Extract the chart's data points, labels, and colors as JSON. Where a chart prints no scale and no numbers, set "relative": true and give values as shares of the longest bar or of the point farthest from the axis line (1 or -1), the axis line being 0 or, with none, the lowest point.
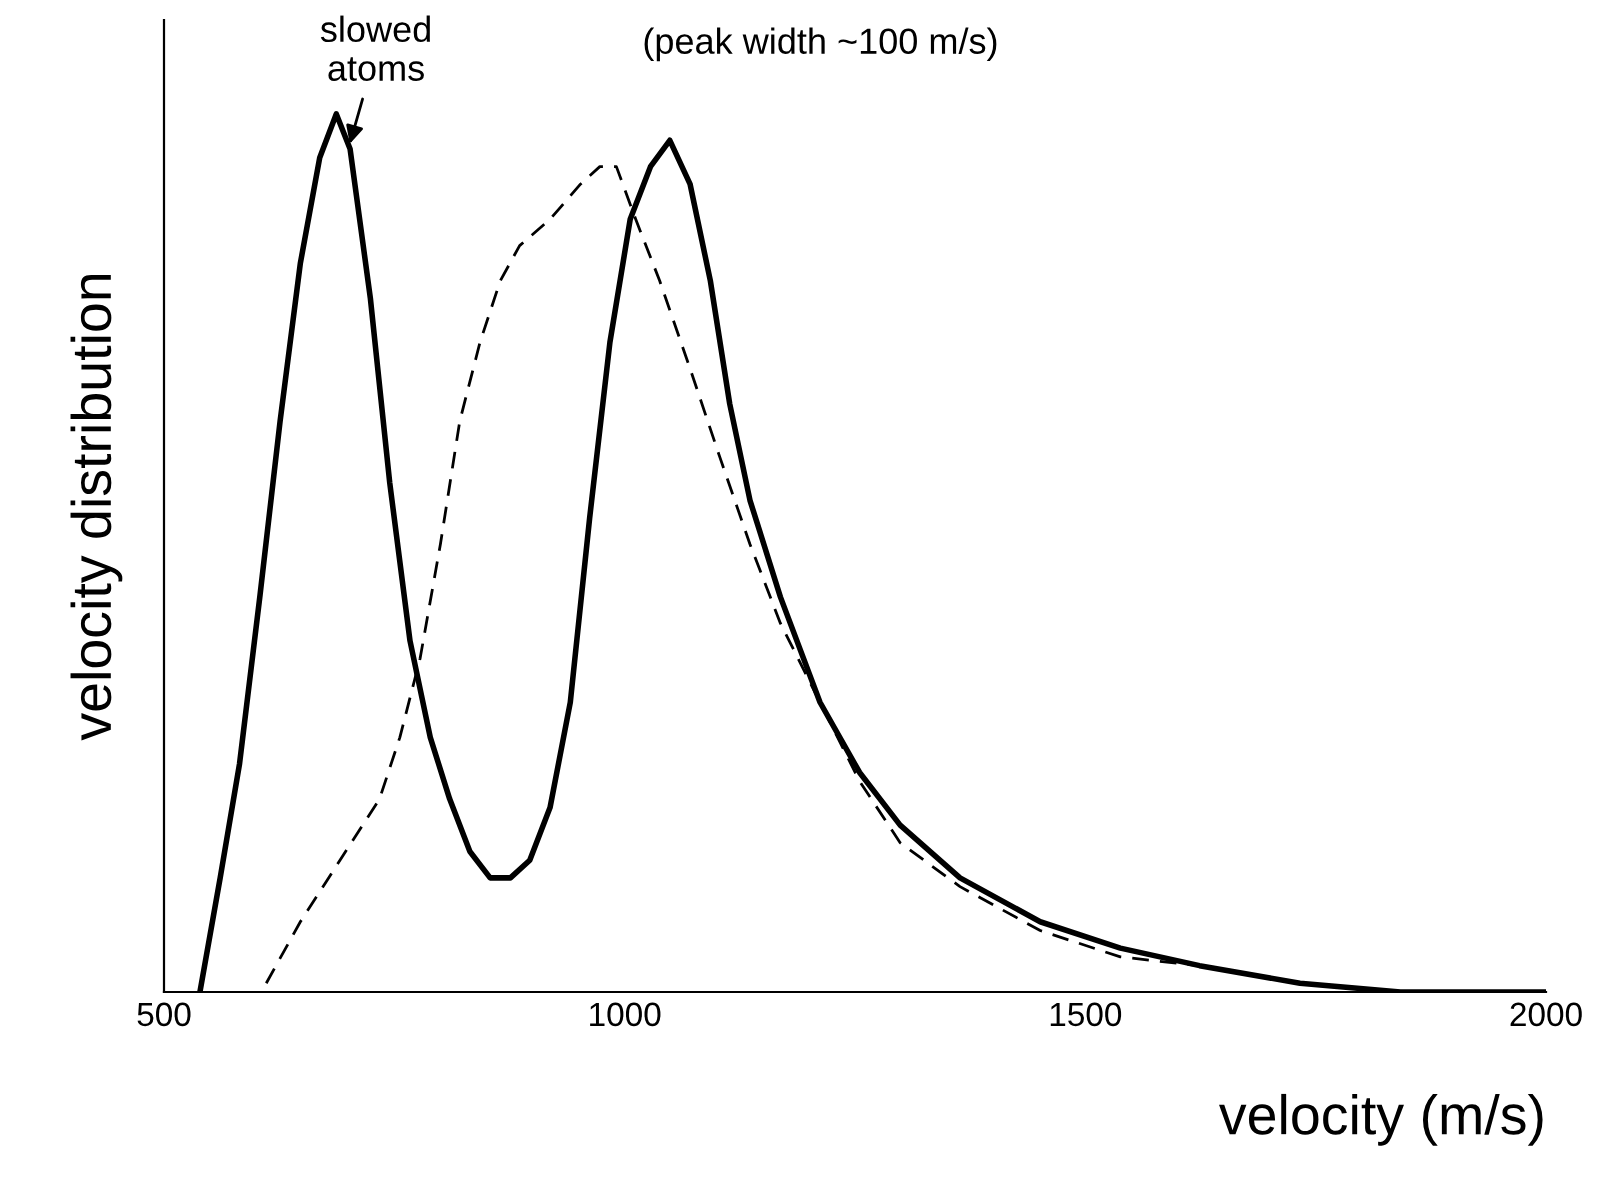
{
  "chart_data": {
    "type": "line",
    "relative": true,
    "xlabel": "velocity (m/s)",
    "ylabel": "velocity distribution",
    "xlim": [
      500,
      2000
    ],
    "xticks": [
      500,
      1000,
      1500,
      2000
    ],
    "grid": false,
    "legend": false,
    "marker": "none",
    "series": [
      {
        "color": "#000000",
        "line_style": "solid",
        "x": [
          539,
          561,
          582,
          604,
          626,
          648,
          669,
          687,
          702,
          724,
          745,
          767,
          789,
          810,
          832,
          854,
          876,
          897,
          919,
          941,
          962,
          984,
          1006,
          1028,
          1049,
          1071,
          1093,
          1114,
          1136,
          1169,
          1212,
          1255,
          1299,
          1364,
          1451,
          1538,
          1624,
          1733,
          1842,
          2000
        ],
        "values": [
          0,
          0.13,
          0.26,
          0.45,
          0.65,
          0.83,
          0.95,
          1,
          0.96,
          0.79,
          0.58,
          0.4,
          0.29,
          0.22,
          0.16,
          0.13,
          0.13,
          0.15,
          0.21,
          0.33,
          0.54,
          0.74,
          0.88,
          0.94,
          0.97,
          0.92,
          0.81,
          0.67,
          0.56,
          0.45,
          0.33,
          0.25,
          0.19,
          0.13,
          0.08,
          0.05,
          0.03,
          0.01,
          0,
          0
        ]
      },
      {
        "color": "#000000",
        "line_style": "dashed",
        "x": [
          611,
          648,
          691,
          734,
          756,
          778,
          800,
          821,
          843,
          865,
          886,
          919,
          952,
          973,
          991,
          1012,
          1038,
          1071,
          1103,
          1136,
          1169,
          1212,
          1255,
          1299,
          1364,
          1451,
          1538,
          1624,
          1733,
          1842,
          2000
        ],
        "values": [
          0.01,
          0.08,
          0.15,
          0.22,
          0.29,
          0.38,
          0.51,
          0.65,
          0.74,
          0.81,
          0.85,
          0.88,
          0.92,
          0.94,
          0.94,
          0.88,
          0.81,
          0.71,
          0.61,
          0.51,
          0.42,
          0.33,
          0.24,
          0.17,
          0.12,
          0.07,
          0.04,
          0.03,
          0.01,
          0,
          0
        ]
      }
    ],
    "annotations": [
      {
        "text": "slowed\natoms",
        "x": 700,
        "y": 0.96
      },
      "(peak width ~100 m/s)"
    ]
  }
}
